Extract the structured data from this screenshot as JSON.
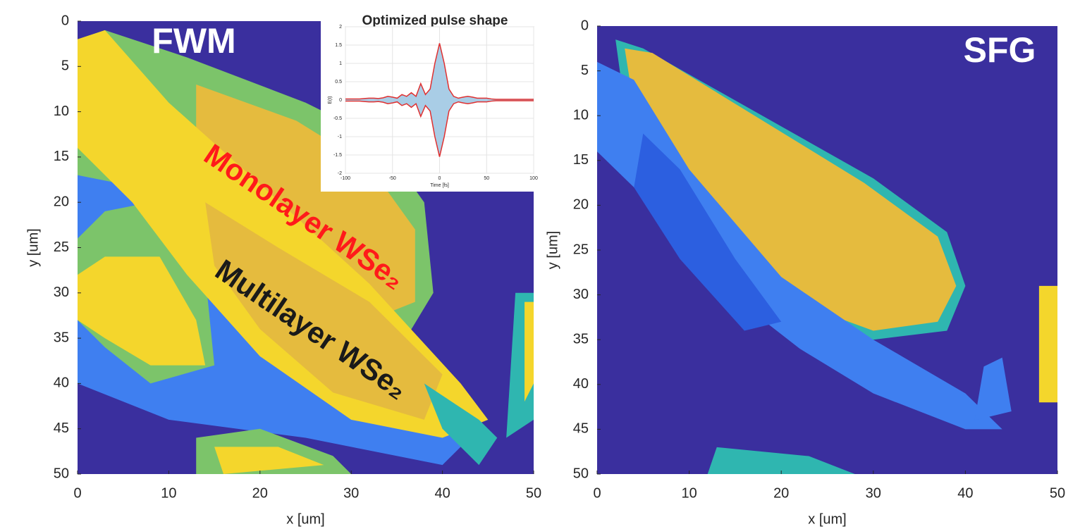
{
  "chart_data": [
    {
      "type": "heatmap",
      "title": "FWM",
      "xlabel": "x [um]",
      "ylabel": "y [um]",
      "xlim": [
        0,
        50
      ],
      "ylim": [
        0,
        50
      ],
      "y_reversed": true,
      "xticks": [
        0,
        10,
        20,
        30,
        40,
        50
      ],
      "yticks": [
        0,
        5,
        10,
        15,
        20,
        25,
        30,
        35,
        40,
        45,
        50
      ],
      "annotations": [
        {
          "text": "Monolayer WSe₂",
          "color": "#ff1a1a"
        },
        {
          "text": "Multilayer WSe₂",
          "color": "#1a1a1a"
        }
      ]
    },
    {
      "type": "heatmap",
      "title": "SFG",
      "xlabel": "x [um]",
      "ylabel": "y [um]",
      "xlim": [
        0,
        50
      ],
      "ylim": [
        0,
        50
      ],
      "y_reversed": true,
      "xticks": [
        0,
        10,
        20,
        30,
        40,
        50
      ],
      "yticks": [
        0,
        5,
        10,
        15,
        20,
        25,
        30,
        35,
        40,
        45,
        50
      ]
    },
    {
      "type": "line",
      "title": "Optimized pulse shape",
      "xlabel": "Time [fs]",
      "ylabel": "E(t)",
      "xlim": [
        -100,
        100
      ],
      "ylim": [
        -2,
        2
      ],
      "grid": true,
      "fill_color": "#a9cde6",
      "xticks": [
        -100,
        -50,
        0,
        50,
        100
      ],
      "yticks": [
        -2,
        -1.5,
        -1,
        -0.5,
        0,
        0.5,
        1,
        1.5,
        2
      ],
      "x": [
        -100,
        -95,
        -90,
        -85,
        -80,
        -75,
        -70,
        -65,
        -60,
        -55,
        -50,
        -45,
        -40,
        -35,
        -30,
        -25,
        -20,
        -15,
        -10,
        -5,
        0,
        5,
        10,
        15,
        20,
        25,
        30,
        35,
        40,
        45,
        50,
        55,
        60,
        65,
        70,
        75,
        80,
        85,
        90,
        95,
        100
      ],
      "series": [
        {
          "color": "#e03030",
          "values": [
            0.03,
            0.03,
            0.03,
            0.03,
            0.04,
            0.05,
            0.05,
            0.04,
            0.06,
            0.1,
            0.08,
            0.05,
            0.15,
            0.1,
            0.2,
            0.1,
            0.45,
            0.15,
            0.3,
            1.0,
            1.55,
            1.0,
            0.3,
            0.1,
            0.05,
            0.08,
            0.1,
            0.08,
            0.05,
            0.05,
            0.05,
            0.03,
            0.02,
            0.02,
            0.02,
            0.02,
            0.02,
            0.02,
            0.02,
            0.02,
            0.02
          ]
        },
        {
          "color": "#e03030",
          "values": [
            -0.03,
            -0.03,
            -0.03,
            -0.03,
            -0.04,
            -0.05,
            -0.05,
            -0.04,
            -0.06,
            -0.1,
            -0.08,
            -0.05,
            -0.15,
            -0.1,
            -0.2,
            -0.1,
            -0.45,
            -0.15,
            -0.3,
            -1.0,
            -1.55,
            -1.0,
            -0.3,
            -0.1,
            -0.05,
            -0.08,
            -0.1,
            -0.08,
            -0.05,
            -0.05,
            -0.05,
            -0.03,
            -0.02,
            -0.02,
            -0.02,
            -0.02,
            -0.02,
            -0.02,
            -0.02,
            -0.02,
            -0.02
          ]
        }
      ]
    }
  ]
}
